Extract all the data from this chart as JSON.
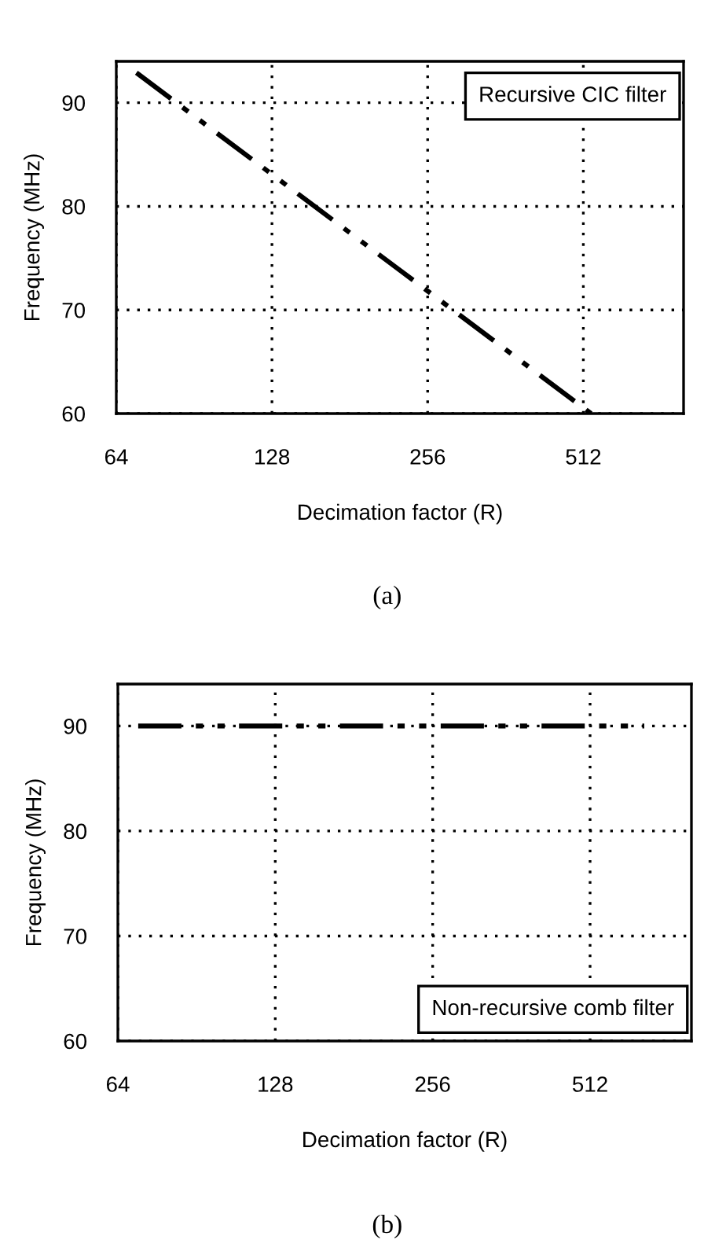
{
  "chart_data": [
    {
      "type": "line",
      "xlabel": "Decimation factor (R)",
      "ylabel": "Frequency (MHz)",
      "log": "x",
      "xlim": [
        64,
        800
      ],
      "xticks": [
        64,
        128,
        256,
        512
      ],
      "ylim": [
        60,
        94
      ],
      "yticks": [
        60,
        70,
        80,
        90
      ],
      "grid": true,
      "line_style": "dashed",
      "marker": "none",
      "series": [
        {
          "color": "#000000",
          "x": [
            70,
            530
          ],
          "values": [
            92.9,
            60
          ]
        }
      ],
      "annotations": [
        "Recursive CIC filter",
        "(a)"
      ]
    },
    {
      "type": "line",
      "xlabel": "Decimation factor (R)",
      "ylabel": "Frequency (MHz)",
      "log": "x",
      "xlim": [
        64,
        800
      ],
      "xticks": [
        64,
        128,
        256,
        512
      ],
      "ylim": [
        60,
        94
      ],
      "yticks": [
        60,
        70,
        80,
        90
      ],
      "grid": true,
      "line_style": "dashed",
      "marker": "none",
      "series": [
        {
          "color": "#000000",
          "x": [
            70,
            650
          ],
          "values": [
            90,
            90
          ]
        }
      ],
      "annotations": [
        "Non-recursive comb filter",
        "(b)"
      ]
    }
  ]
}
